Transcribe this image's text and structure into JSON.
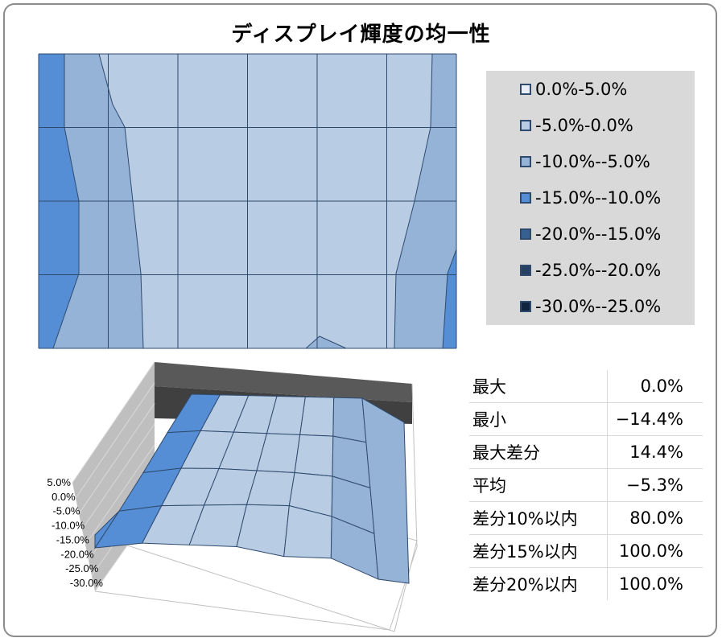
{
  "title": "ディスプレイ輝度の均一性",
  "chart_data": [
    {
      "type": "heatmap",
      "description_role": "contour map of luminance deviation (top view)",
      "grid": {
        "rows": 4,
        "cols": 6
      },
      "legend_placement": "right",
      "gridlines": true
    },
    {
      "type": "heatmap",
      "description_role": "3D surface of luminance deviation",
      "z_tick_labels": [
        "5.0%",
        "0.0%",
        "-5.0%",
        "-10.0%",
        "-15.0%",
        "-20.0%",
        "-25.0%",
        "-30.0%"
      ],
      "zlim": [
        -30,
        5
      ],
      "unit": "%"
    }
  ],
  "legend": [
    {
      "label": "0.0%-5.0%",
      "color": "#e8eef7"
    },
    {
      "label": "-5.0%-0.0%",
      "color": "#b8cce4"
    },
    {
      "label": "-10.0%--5.0%",
      "color": "#95b3d7"
    },
    {
      "label": "-15.0%--10.0%",
      "color": "#558ed5"
    },
    {
      "label": "-20.0%--15.0%",
      "color": "#376092"
    },
    {
      "label": "-25.0%--20.0%",
      "color": "#254061"
    },
    {
      "label": "-30.0%--25.0%",
      "color": "#10243f"
    }
  ],
  "stats": [
    {
      "label": "最大",
      "value": "0.0%"
    },
    {
      "label": "最小",
      "value": "−14.4%"
    },
    {
      "label": "最大差分",
      "value": "14.4%"
    },
    {
      "label": "平均",
      "value": "−5.3%"
    },
    {
      "label": "差分10%以内",
      "value": "80.0%"
    },
    {
      "label": "差分15%以内",
      "value": "100.0%"
    },
    {
      "label": "差分20%以内",
      "value": "100.0%"
    }
  ],
  "colors": {
    "band_0": "#b8cce4",
    "band_5": "#95b3d7",
    "band_10": "#558ed5",
    "grid_line": "#2e4a6e",
    "wall_dark": "#595959",
    "wall_light": "#bfbfbf"
  }
}
